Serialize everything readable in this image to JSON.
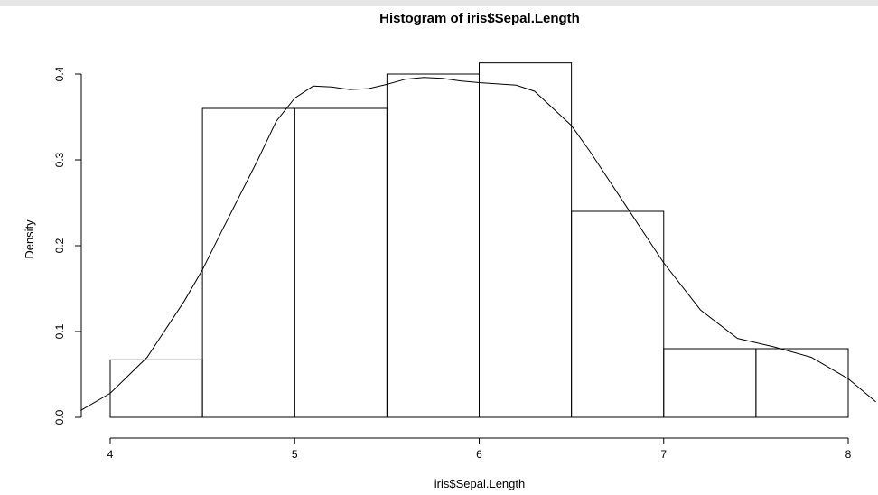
{
  "chart_data": {
    "type": "bar",
    "subtype": "histogram-with-density",
    "title": "Histogram of iris$Sepal.Length",
    "xlabel": "iris$Sepal.Length",
    "ylabel": "Density",
    "xlim": [
      4,
      8
    ],
    "ylim": [
      0,
      0.4
    ],
    "xticks": [
      "4",
      "5",
      "6",
      "7",
      "8"
    ],
    "yticks": [
      "0.0",
      "0.1",
      "0.2",
      "0.3",
      "0.4"
    ],
    "bins": [
      {
        "start": 4.0,
        "end": 4.5,
        "density": 0.067
      },
      {
        "start": 4.5,
        "end": 5.0,
        "density": 0.36
      },
      {
        "start": 5.0,
        "end": 5.5,
        "density": 0.36
      },
      {
        "start": 5.5,
        "end": 6.0,
        "density": 0.4
      },
      {
        "start": 6.0,
        "end": 6.5,
        "density": 0.413
      },
      {
        "start": 6.5,
        "end": 7.0,
        "density": 0.24
      },
      {
        "start": 7.0,
        "end": 7.5,
        "density": 0.08
      },
      {
        "start": 7.5,
        "end": 8.0,
        "density": 0.08
      }
    ],
    "density_curve": {
      "x": [
        3.84,
        4.0,
        4.2,
        4.4,
        4.5,
        4.6,
        4.8,
        4.9,
        5.0,
        5.1,
        5.2,
        5.3,
        5.4,
        5.5,
        5.6,
        5.7,
        5.8,
        5.9,
        6.0,
        6.2,
        6.3,
        6.5,
        6.6,
        6.8,
        7.0,
        7.2,
        7.4,
        7.6,
        7.8,
        8.0,
        8.15
      ],
      "y": [
        0.008,
        0.028,
        0.07,
        0.135,
        0.172,
        0.215,
        0.3,
        0.345,
        0.372,
        0.386,
        0.385,
        0.382,
        0.383,
        0.388,
        0.394,
        0.396,
        0.395,
        0.392,
        0.39,
        0.387,
        0.38,
        0.34,
        0.31,
        0.245,
        0.18,
        0.125,
        0.092,
        0.082,
        0.07,
        0.045,
        0.018
      ]
    },
    "grid": false,
    "legend": "none"
  }
}
